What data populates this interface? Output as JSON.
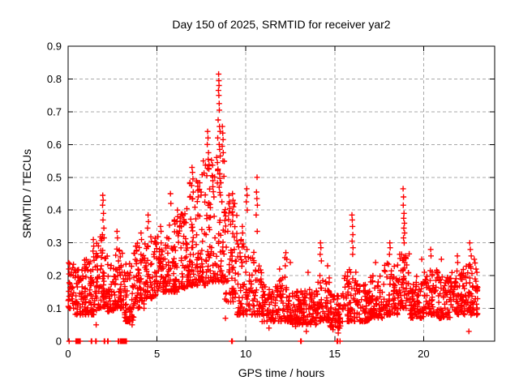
{
  "chart_data": {
    "type": "scatter",
    "title": "Day 150 of 2025, SRMTID for receiver yar2",
    "xlabel": "GPS time / hours",
    "ylabel": "SRMTID / TECUs",
    "xlim": [
      0,
      24
    ],
    "ylim": [
      0,
      0.9
    ],
    "xticks": [
      {
        "v": 0,
        "label": "0"
      },
      {
        "v": 5,
        "label": "5"
      },
      {
        "v": 10,
        "label": "10"
      },
      {
        "v": 15,
        "label": "15"
      },
      {
        "v": 20,
        "label": "20"
      }
    ],
    "yticks": [
      {
        "v": 0.0,
        "label": "0"
      },
      {
        "v": 0.1,
        "label": "0.1"
      },
      {
        "v": 0.2,
        "label": "0.2"
      },
      {
        "v": 0.3,
        "label": "0.3"
      },
      {
        "v": 0.4,
        "label": "0.4"
      },
      {
        "v": 0.5,
        "label": "0.5"
      },
      {
        "v": 0.6,
        "label": "0.6"
      },
      {
        "v": 0.7,
        "label": "0.7"
      },
      {
        "v": 0.8,
        "label": "0.8"
      },
      {
        "v": 0.9,
        "label": "0.9"
      }
    ],
    "grid": {
      "show": true,
      "color": "#a8a8a8",
      "dash": "4,3",
      "x_values": [
        5,
        10,
        15,
        20
      ],
      "y_values": [
        0.1,
        0.2,
        0.3,
        0.4,
        0.5,
        0.6,
        0.7,
        0.8
      ]
    },
    "legend": "none",
    "axis_color": "#000000",
    "background": "#ffffff",
    "marker": {
      "shape": "plus",
      "color": "#ff0000",
      "size": 7,
      "stroke_width": 1.4
    },
    "seed": 1503,
    "band_segments": [
      [
        0.0,
        0.35,
        0.1,
        0.27,
        30
      ],
      [
        0.35,
        0.9,
        0.08,
        0.22,
        50
      ],
      [
        0.9,
        1.6,
        0.08,
        0.27,
        75
      ],
      [
        1.6,
        2.1,
        0.1,
        0.32,
        55
      ],
      [
        2.1,
        2.65,
        0.09,
        0.26,
        50
      ],
      [
        2.65,
        3.15,
        0.1,
        0.29,
        50
      ],
      [
        3.15,
        3.7,
        0.06,
        0.24,
        60
      ],
      [
        3.7,
        4.3,
        0.1,
        0.3,
        60
      ],
      [
        4.3,
        5.0,
        0.13,
        0.32,
        65
      ],
      [
        5.0,
        5.6,
        0.15,
        0.32,
        55
      ],
      [
        5.6,
        6.2,
        0.15,
        0.37,
        60
      ],
      [
        6.2,
        6.8,
        0.16,
        0.42,
        60
      ],
      [
        6.8,
        7.4,
        0.17,
        0.5,
        65
      ],
      [
        7.4,
        8.0,
        0.17,
        0.55,
        65
      ],
      [
        8.0,
        8.8,
        0.18,
        0.58,
        75
      ],
      [
        8.8,
        9.5,
        0.12,
        0.42,
        65
      ],
      [
        9.5,
        10.2,
        0.08,
        0.32,
        60
      ],
      [
        10.2,
        10.9,
        0.08,
        0.28,
        55
      ],
      [
        10.9,
        11.6,
        0.06,
        0.18,
        60
      ],
      [
        11.6,
        12.4,
        0.06,
        0.2,
        65
      ],
      [
        12.4,
        13.1,
        0.05,
        0.16,
        65
      ],
      [
        13.1,
        14.0,
        0.05,
        0.16,
        75
      ],
      [
        14.0,
        14.7,
        0.06,
        0.2,
        60
      ],
      [
        14.7,
        15.4,
        0.04,
        0.15,
        60
      ],
      [
        15.4,
        16.2,
        0.06,
        0.22,
        65
      ],
      [
        16.2,
        17.0,
        0.06,
        0.18,
        70
      ],
      [
        17.0,
        17.8,
        0.07,
        0.2,
        70
      ],
      [
        17.8,
        18.6,
        0.08,
        0.24,
        70
      ],
      [
        18.6,
        19.2,
        0.1,
        0.27,
        50
      ],
      [
        19.2,
        20.0,
        0.07,
        0.2,
        70
      ],
      [
        20.0,
        20.8,
        0.08,
        0.22,
        70
      ],
      [
        20.8,
        21.6,
        0.07,
        0.2,
        70
      ],
      [
        21.6,
        22.4,
        0.08,
        0.22,
        70
      ],
      [
        22.4,
        23.05,
        0.08,
        0.25,
        60
      ]
    ],
    "spike_points": [
      [
        1.42,
        0.31
      ],
      [
        1.44,
        0.29
      ],
      [
        1.4,
        0.275
      ],
      [
        1.95,
        0.445
      ],
      [
        1.97,
        0.43
      ],
      [
        1.94,
        0.415
      ],
      [
        1.99,
        0.39
      ],
      [
        1.96,
        0.37
      ],
      [
        2.01,
        0.345
      ],
      [
        1.93,
        0.325
      ],
      [
        2.75,
        0.335
      ],
      [
        2.78,
        0.315
      ],
      [
        3.82,
        0.29
      ],
      [
        3.85,
        0.275
      ],
      [
        4.1,
        0.33
      ],
      [
        4.13,
        0.31
      ],
      [
        4.5,
        0.385
      ],
      [
        4.52,
        0.365
      ],
      [
        4.47,
        0.345
      ],
      [
        5.2,
        0.35
      ],
      [
        5.23,
        0.335
      ],
      [
        5.76,
        0.45
      ],
      [
        5.78,
        0.42
      ],
      [
        6.15,
        0.4
      ],
      [
        6.17,
        0.38
      ],
      [
        6.13,
        0.365
      ],
      [
        6.5,
        0.36
      ],
      [
        6.97,
        0.53
      ],
      [
        7.0,
        0.515
      ],
      [
        7.02,
        0.495
      ],
      [
        6.95,
        0.475
      ],
      [
        7.04,
        0.455
      ],
      [
        6.99,
        0.435
      ],
      [
        7.3,
        0.46
      ],
      [
        7.32,
        0.44
      ],
      [
        7.85,
        0.64
      ],
      [
        7.87,
        0.62
      ],
      [
        7.83,
        0.6
      ],
      [
        7.9,
        0.575
      ],
      [
        7.88,
        0.555
      ],
      [
        7.92,
        0.525
      ],
      [
        7.8,
        0.505
      ],
      [
        8.47,
        0.815
      ],
      [
        8.48,
        0.795
      ],
      [
        8.49,
        0.78
      ],
      [
        8.46,
        0.765
      ],
      [
        8.48,
        0.75
      ],
      [
        8.5,
        0.725
      ],
      [
        8.51,
        0.705
      ],
      [
        8.44,
        0.675
      ],
      [
        8.52,
        0.655
      ],
      [
        8.55,
        0.64
      ],
      [
        8.42,
        0.62
      ],
      [
        8.5,
        0.6
      ],
      [
        8.53,
        0.585
      ],
      [
        8.56,
        0.565
      ],
      [
        8.4,
        0.545
      ],
      [
        8.43,
        0.525
      ],
      [
        8.68,
        0.655
      ],
      [
        8.7,
        0.635
      ],
      [
        8.72,
        0.615
      ],
      [
        8.67,
        0.595
      ],
      [
        8.73,
        0.575
      ],
      [
        8.71,
        0.55
      ],
      [
        9.05,
        0.445
      ],
      [
        9.08,
        0.425
      ],
      [
        9.1,
        0.405
      ],
      [
        9.25,
        0.45
      ],
      [
        9.28,
        0.43
      ],
      [
        9.31,
        0.41
      ],
      [
        9.27,
        0.385
      ],
      [
        9.8,
        0.35
      ],
      [
        9.82,
        0.33
      ],
      [
        10.05,
        0.465
      ],
      [
        10.07,
        0.445
      ],
      [
        10.03,
        0.425
      ],
      [
        10.08,
        0.4
      ],
      [
        10.63,
        0.5
      ],
      [
        10.6,
        0.455
      ],
      [
        10.62,
        0.435
      ],
      [
        10.65,
        0.415
      ],
      [
        10.58,
        0.385
      ],
      [
        10.64,
        0.335
      ],
      [
        11.9,
        0.22
      ],
      [
        12.2,
        0.255
      ],
      [
        12.25,
        0.27
      ],
      [
        12.3,
        0.25
      ],
      [
        12.22,
        0.23
      ],
      [
        12.5,
        0.24
      ],
      [
        13.5,
        0.21
      ],
      [
        14.2,
        0.3
      ],
      [
        14.22,
        0.285
      ],
      [
        14.18,
        0.265
      ],
      [
        14.25,
        0.245
      ],
      [
        14.6,
        0.23
      ],
      [
        15.97,
        0.385
      ],
      [
        15.99,
        0.37
      ],
      [
        16.0,
        0.35
      ],
      [
        16.02,
        0.325
      ],
      [
        15.98,
        0.305
      ],
      [
        16.03,
        0.285
      ],
      [
        16.01,
        0.265
      ],
      [
        17.3,
        0.24
      ],
      [
        18.1,
        0.3
      ],
      [
        18.12,
        0.285
      ],
      [
        18.08,
        0.265
      ],
      [
        18.85,
        0.465
      ],
      [
        18.87,
        0.44
      ],
      [
        18.86,
        0.415
      ],
      [
        18.9,
        0.39
      ],
      [
        18.88,
        0.375
      ],
      [
        18.92,
        0.36
      ],
      [
        18.89,
        0.345
      ],
      [
        18.93,
        0.33
      ],
      [
        18.87,
        0.315
      ],
      [
        18.91,
        0.3
      ],
      [
        18.9,
        0.255
      ],
      [
        18.94,
        0.24
      ],
      [
        19.9,
        0.25
      ],
      [
        20.4,
        0.28
      ],
      [
        20.42,
        0.26
      ],
      [
        21.0,
        0.25
      ],
      [
        21.9,
        0.26
      ],
      [
        21.92,
        0.24
      ],
      [
        22.6,
        0.3
      ],
      [
        22.63,
        0.28
      ],
      [
        22.68,
        0.26
      ],
      [
        22.85,
        0.25
      ],
      [
        22.95,
        0.22
      ],
      [
        23.0,
        0.21
      ]
    ],
    "low_points": [
      [
        1.58,
        0.05
      ],
      [
        3.6,
        0.05
      ],
      [
        8.85,
        0.07
      ],
      [
        11.3,
        0.04
      ],
      [
        12.8,
        0.045
      ],
      [
        13.4,
        0.03
      ],
      [
        14.9,
        0.035
      ],
      [
        15.2,
        0.025
      ],
      [
        22.55,
        0.03
      ]
    ],
    "zero_xs": [
      0.06,
      0.44,
      0.47,
      0.5,
      0.55,
      0.6,
      0.65,
      0.68,
      1.3,
      1.33,
      1.55,
      1.58,
      2.03,
      2.06,
      2.22,
      2.25,
      2.82,
      2.86,
      2.95,
      3.0,
      3.05,
      3.1,
      3.15,
      3.2,
      3.25,
      3.28,
      9.2,
      9.24,
      13.08,
      13.12,
      15.13,
      15.17,
      15.3
    ]
  }
}
